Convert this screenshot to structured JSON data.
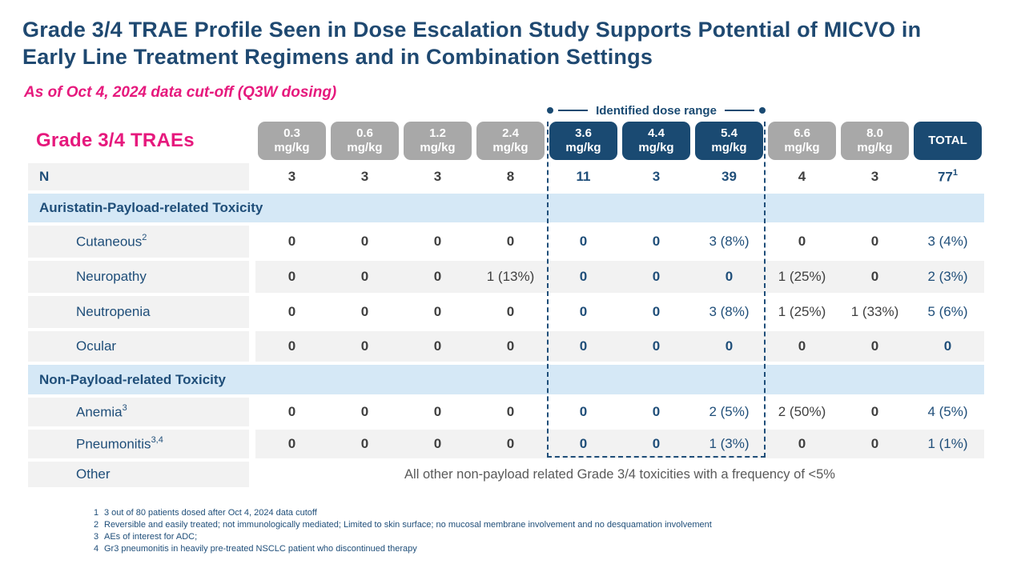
{
  "slide": {
    "title": "Grade 3/4 TRAE Profile Seen in Dose Escalation Study Supports Potential of MICVO in Early Line Treatment Regimens and in Combination Settings",
    "subtitle": "As of Oct 4, 2024 data cut-off (Q3W dosing)"
  },
  "dose_range_label": "Identified dose range",
  "table": {
    "title": "Grade 3/4 TRAEs",
    "columns": [
      {
        "dose": "0.3",
        "unit": "mg/kg"
      },
      {
        "dose": "0.6",
        "unit": "mg/kg"
      },
      {
        "dose": "1.2",
        "unit": "mg/kg"
      },
      {
        "dose": "2.4",
        "unit": "mg/kg"
      },
      {
        "dose": "3.6",
        "unit": "mg/kg"
      },
      {
        "dose": "4.4",
        "unit": "mg/kg"
      },
      {
        "dose": "5.4",
        "unit": "mg/kg"
      },
      {
        "dose": "6.6",
        "unit": "mg/kg"
      },
      {
        "dose": "8.0",
        "unit": "mg/kg"
      },
      {
        "label": "TOTAL"
      }
    ],
    "rows": [
      {
        "type": "data",
        "label": "N",
        "values": [
          "3",
          "3",
          "3",
          "8",
          "11",
          "3",
          "39",
          "4",
          "3"
        ],
        "total": "77",
        "total_sup": "1"
      },
      {
        "type": "section",
        "label": "Auristatin-Payload-related Toxicity"
      },
      {
        "type": "data",
        "label": "Cutaneous",
        "sup": "2",
        "values": [
          "0",
          "0",
          "0",
          "0",
          "0",
          "0",
          "3 (8%)",
          "0",
          "0"
        ],
        "total": "3 (4%)"
      },
      {
        "type": "data",
        "label": "Neuropathy",
        "values": [
          "0",
          "0",
          "0",
          "1 (13%)",
          "0",
          "0",
          "0",
          "1 (25%)",
          "0"
        ],
        "total": "2 (3%)"
      },
      {
        "type": "data",
        "label": "Neutropenia",
        "values": [
          "0",
          "0",
          "0",
          "0",
          "0",
          "0",
          "3 (8%)",
          "1 (25%)",
          "1 (33%)"
        ],
        "total": "5 (6%)"
      },
      {
        "type": "data",
        "label": "Ocular",
        "values": [
          "0",
          "0",
          "0",
          "0",
          "0",
          "0",
          "0",
          "0",
          "0"
        ],
        "total": "0"
      },
      {
        "type": "section",
        "label": "Non-Payload-related Toxicity"
      },
      {
        "type": "data",
        "label": "Anemia",
        "sup": "3",
        "values": [
          "0",
          "0",
          "0",
          "0",
          "0",
          "0",
          "2 (5%)",
          "2 (50%)",
          "0"
        ],
        "total": "4 (5%)"
      },
      {
        "type": "data",
        "label": "Pneumonitis",
        "sup": "3,4",
        "values": [
          "0",
          "0",
          "0",
          "0",
          "0",
          "0",
          "1 (3%)",
          "0",
          "0"
        ],
        "total": "1 (1%)"
      },
      {
        "type": "other",
        "label": "Other",
        "note": "All other non-payload related Grade 3/4 toxicities with a frequency of <5%"
      }
    ]
  },
  "footnotes": [
    {
      "num": "1",
      "text": "3 out of 80 patients dosed after Oct 4, 2024 data cutoff"
    },
    {
      "num": "2",
      "text": "Reversible and easily treated; not immunologically mediated; Limited to skin surface; no mucosal membrane involvement and no desquamation involvement"
    },
    {
      "num": "3",
      "text": "AEs of interest for ADC;"
    },
    {
      "num": "4",
      "text": "Gr3 pneumonitis in heavily pre-treated NSCLC patient who discontinued therapy"
    }
  ],
  "colors": {
    "navy_text": "#1f4e79",
    "navy_pill": "#1a4a72",
    "pink_accent": "#e6197d",
    "gray_pill": "#a8a8a8",
    "row_gray": "#f2f2f2",
    "section_blue": "#d5e8f6",
    "value_gray": "#3f3f3f",
    "other_note_gray": "#595959"
  }
}
